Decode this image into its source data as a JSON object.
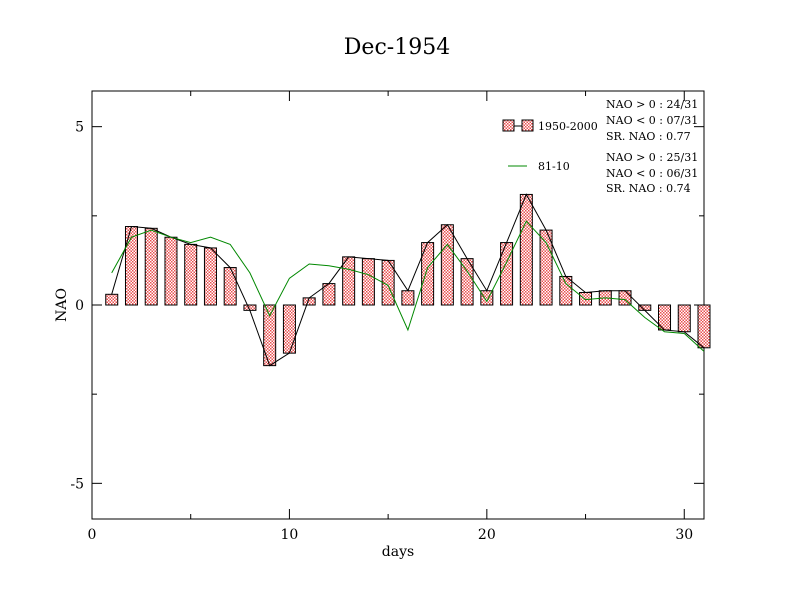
{
  "chart_data": {
    "type": "bar",
    "title": "Dec-1954",
    "xlabel": "days",
    "ylabel": "NAO",
    "xlim": [
      0,
      31
    ],
    "ylim": [
      -6,
      6
    ],
    "xticks": [
      0,
      10,
      20,
      30
    ],
    "yticks": [
      -5,
      0,
      5
    ],
    "x": [
      1,
      2,
      3,
      4,
      5,
      6,
      7,
      8,
      9,
      10,
      11,
      12,
      13,
      14,
      15,
      16,
      17,
      18,
      19,
      20,
      21,
      22,
      23,
      24,
      25,
      26,
      27,
      28,
      29,
      30,
      31
    ],
    "series": [
      {
        "name": "1950-2000",
        "kind": "bar+line",
        "color": "#ff8080",
        "values": [
          0.3,
          2.2,
          2.15,
          1.9,
          1.7,
          1.6,
          1.05,
          -0.15,
          -1.7,
          -1.35,
          0.2,
          0.6,
          1.35,
          1.3,
          1.25,
          0.4,
          1.75,
          2.25,
          1.3,
          0.4,
          1.75,
          3.1,
          2.1,
          0.8,
          0.35,
          0.4,
          0.4,
          -0.15,
          -0.7,
          -0.75,
          -1.2
        ]
      },
      {
        "name": "81-10",
        "kind": "line",
        "color": "#008800",
        "values": [
          0.9,
          1.9,
          2.1,
          1.9,
          1.75,
          1.9,
          1.7,
          0.9,
          -0.3,
          0.75,
          1.15,
          1.1,
          1.0,
          0.85,
          0.55,
          -0.7,
          1.05,
          1.7,
          0.95,
          0.1,
          1.2,
          2.35,
          1.75,
          0.6,
          0.15,
          0.2,
          0.15,
          -0.35,
          -0.75,
          -0.8,
          -1.3
        ]
      }
    ],
    "legend": {
      "placement": "top-right",
      "stats_1950_2000": [
        "NAO > 0 : 24/31",
        "NAO < 0 : 07/31",
        "SR. NAO :  0.77"
      ],
      "stats_81_10": [
        "NAO > 0 : 25/31",
        "NAO < 0 : 06/31",
        "SR. NAO :  0.74"
      ]
    },
    "colors": {
      "bar_fill": "#ff8080",
      "bar_line": "#000000",
      "line_81_10": "#008800",
      "frame": "#000000"
    },
    "grid": false
  }
}
